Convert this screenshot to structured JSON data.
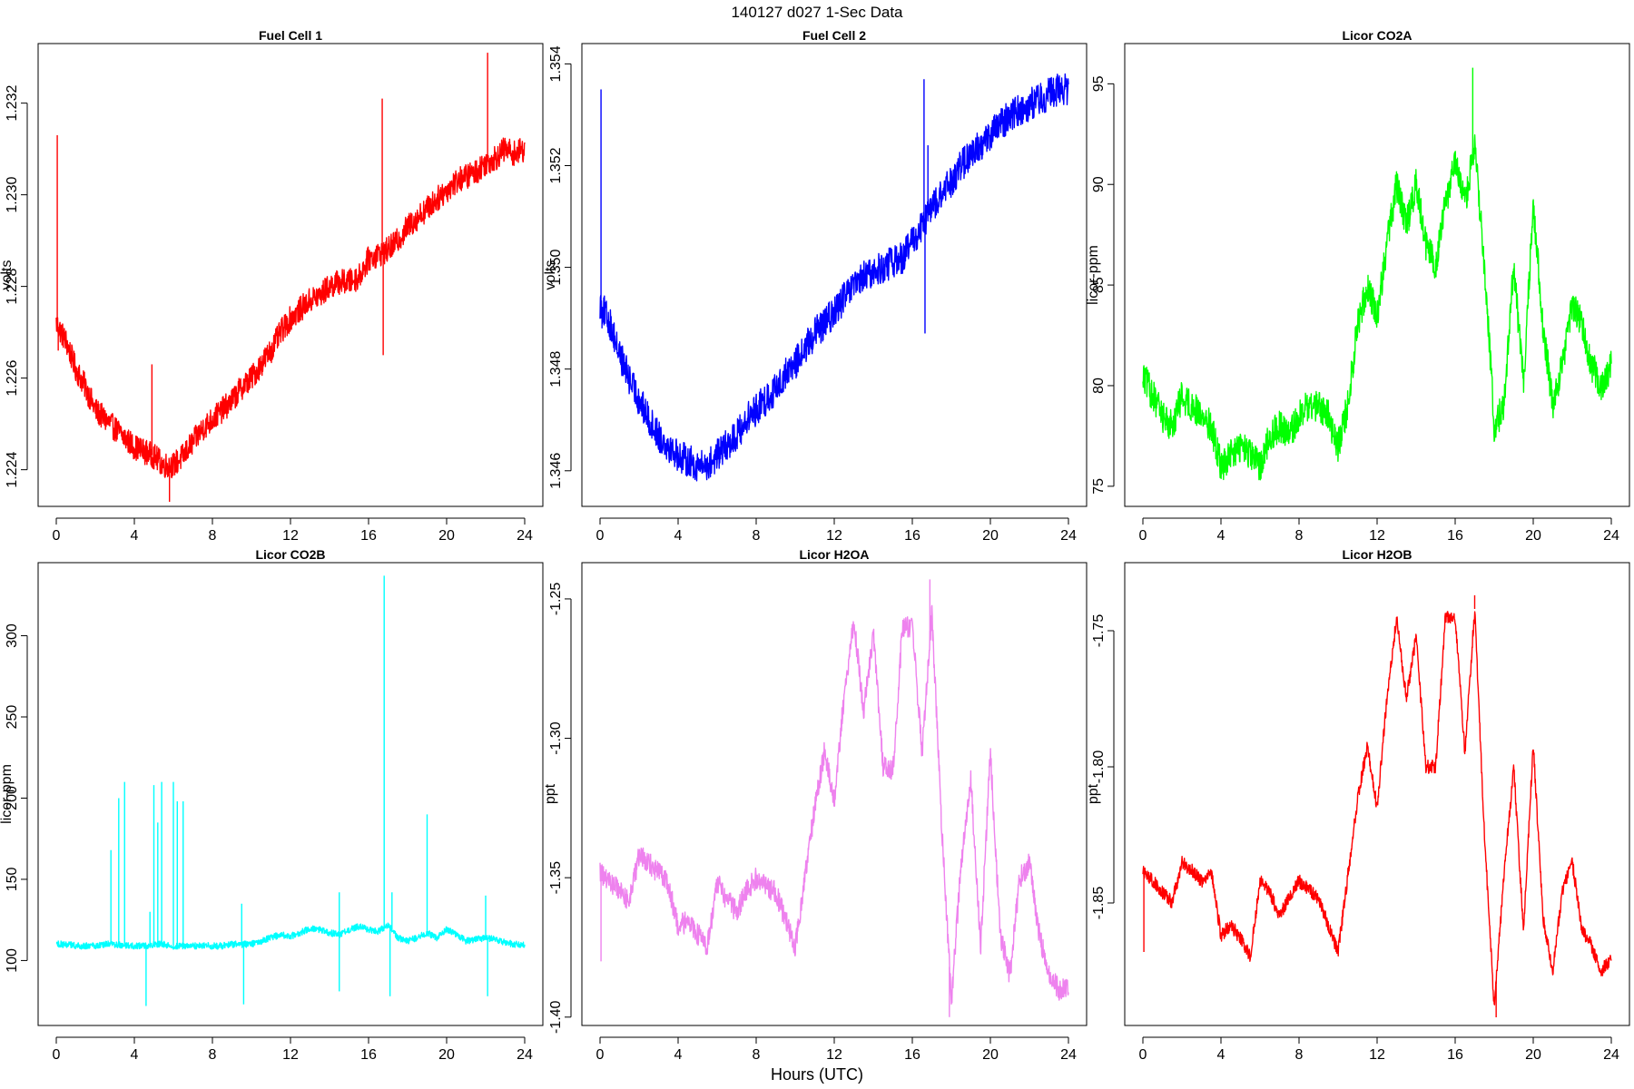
{
  "figure": {
    "title": "140127   d027   1-Sec Data",
    "xlabel": "Hours (UTC)"
  },
  "chart_data": [
    {
      "type": "line",
      "title": "Fuel Cell 1",
      "ylabel": "volts",
      "color": "#ff0000",
      "xlim": [
        0,
        24
      ],
      "ylim": [
        1.2232,
        1.2333
      ],
      "xticks": [
        0,
        4,
        8,
        12,
        16,
        20,
        24
      ],
      "yticks": [
        1.224,
        1.226,
        1.228,
        1.23,
        1.232
      ],
      "ytick_labels": [
        "1.224",
        "1.226",
        "1.228",
        "1.230",
        "1.232"
      ],
      "noise": 0.00028,
      "x": [
        0,
        0.5,
        1,
        1.5,
        2,
        2.5,
        3,
        3.5,
        4,
        4.5,
        5,
        5.5,
        6,
        6.5,
        7,
        7.5,
        8,
        8.5,
        9,
        9.5,
        10,
        10.5,
        11,
        11.5,
        12,
        12.5,
        13,
        13.5,
        14,
        14.5,
        15,
        15.5,
        16,
        16.5,
        17,
        17.5,
        18,
        18.5,
        19,
        19.5,
        20,
        20.5,
        21,
        21.5,
        22,
        22.5,
        23,
        23.5,
        24
      ],
      "y": [
        1.2272,
        1.2268,
        1.2262,
        1.2258,
        1.2253,
        1.2251,
        1.2249,
        1.2247,
        1.2245,
        1.2244,
        1.2243,
        1.2241,
        1.2241,
        1.2243,
        1.2246,
        1.2249,
        1.2251,
        1.2253,
        1.2255,
        1.2258,
        1.226,
        1.2263,
        1.2266,
        1.227,
        1.2273,
        1.2275,
        1.2277,
        1.2278,
        1.228,
        1.2281,
        1.2281,
        1.2282,
        1.2286,
        1.2287,
        1.2288,
        1.229,
        1.2293,
        1.2295,
        1.2297,
        1.2299,
        1.2301,
        1.2303,
        1.2304,
        1.2305,
        1.2307,
        1.2308,
        1.231,
        1.2309,
        1.231
      ],
      "spikes": [
        [
          0.05,
          1.2313
        ],
        [
          0.1,
          1.2266
        ],
        [
          4.9,
          1.2263
        ],
        [
          5.8,
          1.2233
        ],
        [
          16.7,
          1.2321
        ],
        [
          16.75,
          1.2265
        ],
        [
          16.9,
          1.2286
        ],
        [
          22.1,
          1.2331
        ]
      ]
    },
    {
      "type": "line",
      "title": "Fuel Cell 2",
      "ylabel": "volts",
      "color": "#0000ff",
      "xlim": [
        0,
        24
      ],
      "ylim": [
        1.3453,
        1.3544
      ],
      "xticks": [
        0,
        4,
        8,
        12,
        16,
        20,
        24
      ],
      "yticks": [
        1.346,
        1.348,
        1.35,
        1.352,
        1.354
      ],
      "ytick_labels": [
        "1.346",
        "1.348",
        "1.350",
        "1.352",
        "1.354"
      ],
      "noise": 0.00032,
      "x": [
        0,
        0.5,
        1,
        1.5,
        2,
        2.5,
        3,
        3.5,
        4,
        4.5,
        5,
        5.5,
        6,
        6.5,
        7,
        7.5,
        8,
        8.5,
        9,
        9.5,
        10,
        10.5,
        11,
        11.5,
        12,
        12.5,
        13,
        13.5,
        14,
        14.5,
        15,
        15.5,
        16,
        16.5,
        17,
        17.5,
        18,
        18.5,
        19,
        19.5,
        20,
        20.5,
        21,
        21.5,
        22,
        22.5,
        23,
        23.5,
        24
      ],
      "y": [
        1.3493,
        1.3489,
        1.3483,
        1.3478,
        1.3474,
        1.347,
        1.3467,
        1.3465,
        1.3463,
        1.3462,
        1.3461,
        1.3461,
        1.3463,
        1.3465,
        1.3467,
        1.347,
        1.3472,
        1.3474,
        1.3476,
        1.3479,
        1.3481,
        1.3484,
        1.3487,
        1.3489,
        1.3491,
        1.3494,
        1.3496,
        1.3498,
        1.3499,
        1.35,
        1.3501,
        1.3502,
        1.3505,
        1.3508,
        1.3512,
        1.3514,
        1.3517,
        1.352,
        1.3522,
        1.3524,
        1.3526,
        1.3528,
        1.353,
        1.3531,
        1.3532,
        1.3533,
        1.3534,
        1.3535,
        1.3535
      ],
      "spikes": [
        [
          0.05,
          1.3535
        ],
        [
          0.1,
          1.3488
        ],
        [
          16.6,
          1.3537
        ],
        [
          16.65,
          1.3487
        ],
        [
          16.8,
          1.3524
        ]
      ]
    },
    {
      "type": "line",
      "title": "Licor CO2A",
      "ylabel": "licor-ppm",
      "color": "#00ff00",
      "xlim": [
        0,
        24
      ],
      "ylim": [
        74,
        97
      ],
      "xticks": [
        0,
        4,
        8,
        12,
        16,
        20,
        24
      ],
      "yticks": [
        75,
        80,
        85,
        90,
        95
      ],
      "ytick_labels": [
        "75",
        "80",
        "85",
        "90",
        "95"
      ],
      "noise": 0.8,
      "x": [
        0,
        0.5,
        1,
        1.5,
        2,
        2.5,
        3,
        3.5,
        4,
        4.5,
        5,
        5.5,
        6,
        6.5,
        7,
        7.5,
        8,
        8.5,
        9,
        9.5,
        10,
        10.5,
        11,
        11.5,
        12,
        12.5,
        13,
        13.5,
        14,
        14.5,
        15,
        15.5,
        16,
        16.5,
        17,
        17.5,
        18,
        18.5,
        19,
        19.5,
        20,
        20.5,
        21,
        21.5,
        22,
        22.5,
        23,
        23.5,
        24
      ],
      "y": [
        80.5,
        79.5,
        78.5,
        78,
        79.5,
        79,
        78.5,
        78,
        76,
        76.5,
        77,
        76.5,
        76,
        77.5,
        78,
        77.5,
        78.5,
        79,
        79,
        78.5,
        77,
        79,
        83,
        85,
        83.5,
        87,
        90,
        88,
        90,
        87,
        86,
        89,
        91,
        89,
        92,
        86,
        78,
        79,
        86,
        80,
        89,
        83,
        79,
        81,
        84,
        83,
        81,
        80,
        81
      ],
      "spikes": [
        [
          16.9,
          95.8
        ]
      ]
    },
    {
      "type": "line",
      "title": "Licor CO2B",
      "ylabel": "licor-ppm",
      "color": "#00ffff",
      "xlim": [
        0,
        24
      ],
      "ylim": [
        60,
        345
      ],
      "xticks": [
        0,
        4,
        8,
        12,
        16,
        20,
        24
      ],
      "yticks": [
        100,
        150,
        200,
        250,
        300
      ],
      "ytick_labels": [
        "100",
        "150",
        "200",
        "250",
        "300"
      ],
      "noise": 2,
      "x": [
        0,
        0.5,
        1,
        1.5,
        2,
        2.5,
        3,
        3.5,
        4,
        4.5,
        5,
        5.5,
        6,
        6.5,
        7,
        7.5,
        8,
        8.5,
        9,
        9.5,
        10,
        10.5,
        11,
        11.5,
        12,
        12.5,
        13,
        13.5,
        14,
        14.5,
        15,
        15.5,
        16,
        16.5,
        17,
        17.5,
        18,
        18.5,
        19,
        19.5,
        20,
        20.5,
        21,
        21.5,
        22,
        22.5,
        23,
        23.5,
        24
      ],
      "y": [
        110,
        110,
        109,
        109,
        109,
        110,
        110,
        109,
        109,
        109,
        110,
        110,
        109,
        109,
        109,
        109,
        109,
        109,
        110,
        110,
        110,
        112,
        114,
        116,
        115,
        117,
        120,
        119,
        117,
        116,
        119,
        121,
        119,
        118,
        122,
        114,
        112,
        114,
        117,
        114,
        119,
        116,
        112,
        113,
        114,
        113,
        111,
        110,
        110
      ],
      "spikes": [
        [
          2.8,
          168
        ],
        [
          3.2,
          200
        ],
        [
          3.5,
          210
        ],
        [
          4.6,
          72
        ],
        [
          4.8,
          130
        ],
        [
          5.0,
          208
        ],
        [
          5.2,
          185
        ],
        [
          5.4,
          210
        ],
        [
          6.0,
          210
        ],
        [
          6.2,
          198
        ],
        [
          6.5,
          198
        ],
        [
          9.5,
          135
        ],
        [
          9.6,
          73
        ],
        [
          14.5,
          142
        ],
        [
          14.5,
          81
        ],
        [
          16.8,
          337
        ],
        [
          17.1,
          78
        ],
        [
          17.2,
          142
        ],
        [
          19.0,
          190
        ],
        [
          22.0,
          140
        ],
        [
          22.1,
          78
        ]
      ]
    },
    {
      "type": "line",
      "title": "Licor H2OA",
      "ylabel": "ppt",
      "color": "#ee82ee",
      "xlim": [
        0,
        24
      ],
      "ylim": [
        -1.403,
        -1.237
      ],
      "xticks": [
        0,
        4,
        8,
        12,
        16,
        20,
        24
      ],
      "yticks": [
        -1.4,
        -1.35,
        -1.3,
        -1.25
      ],
      "ytick_labels": [
        "-1.40",
        "-1.35",
        "-1.30",
        "-1.25"
      ],
      "noise": 0.004,
      "x": [
        0,
        0.5,
        1,
        1.5,
        2,
        2.5,
        3,
        3.5,
        4,
        4.5,
        5,
        5.5,
        6,
        6.5,
        7,
        7.5,
        8,
        8.5,
        9,
        9.5,
        10,
        10.5,
        11,
        11.5,
        12,
        12.5,
        13,
        13.5,
        14,
        14.5,
        15,
        15.5,
        16,
        16.5,
        17,
        17.5,
        18,
        18.5,
        19,
        19.5,
        20,
        20.5,
        21,
        21.5,
        22,
        22.5,
        23,
        23.5,
        24
      ],
      "y": [
        -1.348,
        -1.351,
        -1.355,
        -1.358,
        -1.342,
        -1.345,
        -1.348,
        -1.352,
        -1.368,
        -1.365,
        -1.37,
        -1.375,
        -1.352,
        -1.358,
        -1.362,
        -1.355,
        -1.35,
        -1.353,
        -1.355,
        -1.365,
        -1.375,
        -1.35,
        -1.325,
        -1.305,
        -1.322,
        -1.285,
        -1.258,
        -1.29,
        -1.262,
        -1.31,
        -1.312,
        -1.26,
        -1.26,
        -1.305,
        -1.255,
        -1.33,
        -1.395,
        -1.345,
        -1.315,
        -1.375,
        -1.305,
        -1.37,
        -1.385,
        -1.35,
        -1.345,
        -1.37,
        -1.385,
        -1.39,
        -1.39
      ],
      "spikes": [
        [
          0.05,
          -1.38
        ],
        [
          16.9,
          -1.243
        ],
        [
          17.9,
          -1.4
        ]
      ]
    },
    {
      "type": "line",
      "title": "Licor H2OB",
      "ylabel": "ppt",
      "color": "#ff0000",
      "xlim": [
        0,
        24
      ],
      "ylim": [
        -1.895,
        -1.725
      ],
      "xticks": [
        0,
        4,
        8,
        12,
        16,
        20,
        24
      ],
      "yticks": [
        -1.85,
        -1.8,
        -1.75
      ],
      "ytick_labels": [
        "-1.85",
        "-1.80",
        "-1.75"
      ],
      "noise": 0.0025,
      "x": [
        0,
        0.5,
        1,
        1.5,
        2,
        2.5,
        3,
        3.5,
        4,
        4.5,
        5,
        5.5,
        6,
        6.5,
        7,
        7.5,
        8,
        8.5,
        9,
        9.5,
        10,
        10.5,
        11,
        11.5,
        12,
        12.5,
        13,
        13.5,
        14,
        14.5,
        15,
        15.5,
        16,
        16.5,
        17,
        17.5,
        18,
        18.5,
        19,
        19.5,
        20,
        20.5,
        21,
        21.5,
        22,
        22.5,
        23,
        23.5,
        24
      ],
      "y": [
        -1.838,
        -1.842,
        -1.846,
        -1.85,
        -1.835,
        -1.838,
        -1.842,
        -1.838,
        -1.862,
        -1.858,
        -1.863,
        -1.87,
        -1.842,
        -1.846,
        -1.855,
        -1.848,
        -1.842,
        -1.845,
        -1.848,
        -1.858,
        -1.868,
        -1.84,
        -1.812,
        -1.792,
        -1.815,
        -1.775,
        -1.745,
        -1.775,
        -1.752,
        -1.8,
        -1.8,
        -1.745,
        -1.745,
        -1.795,
        -1.742,
        -1.825,
        -1.888,
        -1.84,
        -1.8,
        -1.86,
        -1.792,
        -1.855,
        -1.875,
        -1.845,
        -1.835,
        -1.86,
        -1.866,
        -1.875,
        -1.87
      ],
      "spikes": [
        [
          0.05,
          -1.868
        ],
        [
          18.1,
          -1.892
        ],
        [
          17.0,
          -1.737
        ]
      ]
    }
  ]
}
